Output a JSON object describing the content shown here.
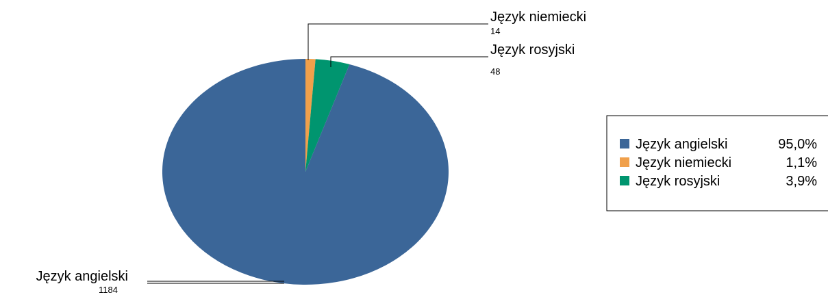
{
  "chart_data": {
    "type": "pie",
    "slices": [
      {
        "label": "Język angielski",
        "value": 1184,
        "percent": "95,0%",
        "color": "#3b6698"
      },
      {
        "label": "Język niemiecki",
        "value": 14,
        "percent": "1,1%",
        "color": "#f0a04b"
      },
      {
        "label": "Język rosyjski",
        "value": 48,
        "percent": "3,9%",
        "color": "#00956f"
      }
    ],
    "legend_placement": "right"
  }
}
